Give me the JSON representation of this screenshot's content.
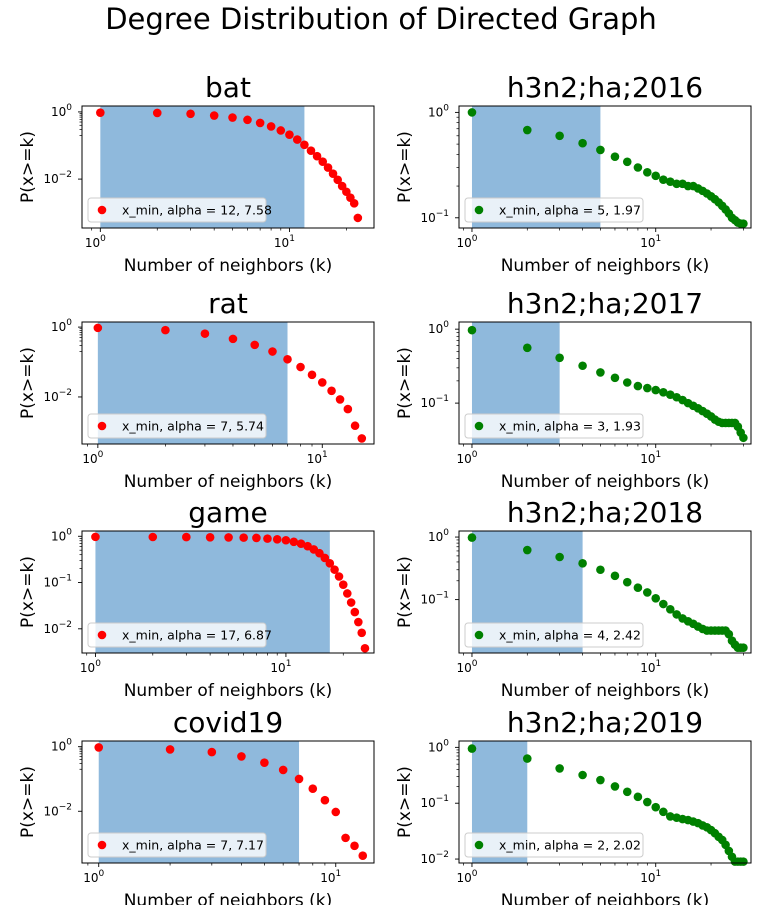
{
  "figure": {
    "title": "Degree Distribution of Directed Graph"
  },
  "chart_data": [
    {
      "type": "scatter",
      "title": "bat",
      "xlabel": "Number of neighbors (k)",
      "ylabel": "P(x>=k)",
      "xscale": "log",
      "yscale": "log",
      "xlim": [
        0.8,
        28
      ],
      "ylim": [
        0.00035,
        1.5
      ],
      "xticks": [
        {
          "v": 1,
          "base": "10",
          "exp": "0"
        },
        {
          "v": 10,
          "base": "10",
          "exp": "1"
        }
      ],
      "yticks": [
        {
          "v": 1,
          "base": "10",
          "exp": "0"
        },
        {
          "v": 0.01,
          "base": "10",
          "exp": "−2"
        }
      ],
      "color": "#ff0000",
      "shade": [
        1,
        12
      ],
      "legend": "x_min, alpha = 12, 7.58",
      "legend_position": "lower left",
      "x": [
        1,
        2,
        3,
        4,
        5,
        6,
        7,
        8,
        9,
        10,
        11,
        12,
        13,
        14,
        15,
        16,
        17,
        18,
        19,
        20,
        21,
        22,
        23
      ],
      "y": [
        0.95,
        0.93,
        0.88,
        0.78,
        0.68,
        0.58,
        0.47,
        0.37,
        0.28,
        0.21,
        0.15,
        0.105,
        0.07,
        0.048,
        0.033,
        0.022,
        0.0145,
        0.0095,
        0.0062,
        0.0042,
        0.0028,
        0.0019,
        0.0007
      ]
    },
    {
      "type": "scatter",
      "title": "h3n2;ha;2016",
      "xlabel": "Number of neighbors (k)",
      "ylabel": "P(x>=k)",
      "xscale": "log",
      "yscale": "log",
      "xlim": [
        0.85,
        33
      ],
      "ylim": [
        0.08,
        1.15
      ],
      "xticks": [
        {
          "v": 1,
          "base": "10",
          "exp": "0"
        },
        {
          "v": 10,
          "base": "10",
          "exp": "1"
        }
      ],
      "yticks": [
        {
          "v": 1,
          "base": "10",
          "exp": "0"
        },
        {
          "v": 0.1,
          "base": "10",
          "exp": "−1"
        }
      ],
      "color": "#008000",
      "shade": [
        1,
        5
      ],
      "legend": "x_min, alpha = 5, 1.97",
      "legend_position": "lower left",
      "x": [
        1,
        2,
        3,
        4,
        5,
        6,
        7,
        8,
        9,
        10,
        11,
        12,
        13,
        14,
        15,
        16,
        17,
        18,
        19,
        20,
        21,
        22,
        23,
        24,
        25,
        26,
        27,
        28,
        29,
        30
      ],
      "y": [
        1.0,
        0.68,
        0.6,
        0.51,
        0.44,
        0.38,
        0.34,
        0.3,
        0.27,
        0.25,
        0.23,
        0.22,
        0.21,
        0.21,
        0.2,
        0.2,
        0.19,
        0.18,
        0.17,
        0.16,
        0.15,
        0.14,
        0.13,
        0.12,
        0.11,
        0.1,
        0.095,
        0.09,
        0.088,
        0.088
      ]
    },
    {
      "type": "scatter",
      "title": "rat",
      "xlabel": "Number of neighbors (k)",
      "ylabel": "P(x>=k)",
      "xscale": "log",
      "yscale": "log",
      "xlim": [
        0.85,
        17
      ],
      "ylim": [
        0.00045,
        1.4
      ],
      "xticks": [
        {
          "v": 1,
          "base": "10",
          "exp": "0"
        },
        {
          "v": 10,
          "base": "10",
          "exp": "1"
        }
      ],
      "yticks": [
        {
          "v": 1,
          "base": "10",
          "exp": "0"
        },
        {
          "v": 0.01,
          "base": "10",
          "exp": "−2"
        }
      ],
      "color": "#ff0000",
      "shade": [
        1,
        7
      ],
      "legend": "x_min, alpha = 7, 5.74",
      "legend_position": "lower left",
      "x": [
        1,
        2,
        3,
        4,
        5,
        6,
        7,
        8,
        9,
        10,
        11,
        12,
        13,
        14,
        15
      ],
      "y": [
        0.95,
        0.82,
        0.65,
        0.46,
        0.31,
        0.2,
        0.12,
        0.072,
        0.043,
        0.026,
        0.015,
        0.0085,
        0.0045,
        0.0015,
        0.00065
      ]
    },
    {
      "type": "scatter",
      "title": "h3n2;ha;2017",
      "xlabel": "Number of neighbors (k)",
      "ylabel": "P(x>=k)",
      "xscale": "log",
      "yscale": "log",
      "xlim": [
        0.85,
        33
      ],
      "ylim": [
        0.028,
        1.25
      ],
      "xticks": [
        {
          "v": 1,
          "base": "10",
          "exp": "0"
        },
        {
          "v": 10,
          "base": "10",
          "exp": "1"
        }
      ],
      "yticks": [
        {
          "v": 1,
          "base": "10",
          "exp": "0"
        },
        {
          "v": 0.1,
          "base": "10",
          "exp": "−1"
        }
      ],
      "color": "#008000",
      "shade": [
        1,
        3
      ],
      "legend": "x_min, alpha = 3, 1.93",
      "legend_position": "lower left",
      "x": [
        1,
        2,
        3,
        4,
        5,
        6,
        7,
        8,
        9,
        10,
        11,
        12,
        13,
        14,
        15,
        16,
        17,
        18,
        19,
        20,
        21,
        22,
        23,
        24,
        25,
        26,
        27,
        28,
        29,
        30
      ],
      "y": [
        0.97,
        0.56,
        0.41,
        0.32,
        0.26,
        0.22,
        0.19,
        0.17,
        0.16,
        0.15,
        0.14,
        0.13,
        0.12,
        0.11,
        0.1,
        0.092,
        0.085,
        0.078,
        0.072,
        0.066,
        0.06,
        0.056,
        0.054,
        0.054,
        0.054,
        0.054,
        0.054,
        0.048,
        0.04,
        0.034
      ]
    },
    {
      "type": "scatter",
      "title": "game",
      "xlabel": "Number of neighbors (k)",
      "ylabel": "P(x>=k)",
      "xscale": "log",
      "yscale": "log",
      "xlim": [
        0.85,
        29
      ],
      "ylim": [
        0.003,
        1.3
      ],
      "xticks": [
        {
          "v": 1,
          "base": "10",
          "exp": "0"
        },
        {
          "v": 10,
          "base": "10",
          "exp": "1"
        }
      ],
      "yticks": [
        {
          "v": 1,
          "base": "10",
          "exp": "0"
        },
        {
          "v": 0.1,
          "base": "10",
          "exp": "−1"
        },
        {
          "v": 0.01,
          "base": "10",
          "exp": "−2"
        }
      ],
      "color": "#ff0000",
      "shade": [
        1,
        17
      ],
      "legend": "x_min, alpha = 17, 6.87",
      "legend_position": "lower left",
      "x": [
        1,
        2,
        3,
        4,
        5,
        6,
        7,
        8,
        9,
        10,
        11,
        12,
        13,
        14,
        15,
        16,
        17,
        18,
        19,
        20,
        21,
        22,
        23,
        24,
        25,
        26
      ],
      "y": [
        0.97,
        0.965,
        0.96,
        0.95,
        0.945,
        0.935,
        0.92,
        0.89,
        0.86,
        0.82,
        0.76,
        0.69,
        0.61,
        0.52,
        0.43,
        0.34,
        0.26,
        0.19,
        0.135,
        0.09,
        0.058,
        0.037,
        0.023,
        0.014,
        0.0082,
        0.0038
      ]
    },
    {
      "type": "scatter",
      "title": "h3n2;ha;2018",
      "xlabel": "Number of neighbors (k)",
      "ylabel": "P(x>=k)",
      "xscale": "log",
      "yscale": "log",
      "xlim": [
        0.85,
        33
      ],
      "ylim": [
        0.014,
        1.25
      ],
      "xticks": [
        {
          "v": 1,
          "base": "10",
          "exp": "0"
        },
        {
          "v": 10,
          "base": "10",
          "exp": "1"
        }
      ],
      "yticks": [
        {
          "v": 1,
          "base": "10",
          "exp": "0"
        },
        {
          "v": 0.1,
          "base": "10",
          "exp": "−1"
        }
      ],
      "color": "#008000",
      "shade": [
        1,
        4
      ],
      "legend": "x_min, alpha = 4, 2.42",
      "legend_position": "lower left",
      "x": [
        1,
        2,
        3,
        4,
        5,
        6,
        7,
        8,
        9,
        10,
        11,
        12,
        13,
        14,
        15,
        16,
        17,
        18,
        19,
        20,
        21,
        22,
        23,
        24,
        25,
        26,
        27,
        28,
        29,
        30
      ],
      "y": [
        0.98,
        0.62,
        0.48,
        0.38,
        0.3,
        0.24,
        0.19,
        0.155,
        0.13,
        0.105,
        0.085,
        0.07,
        0.058,
        0.05,
        0.045,
        0.041,
        0.037,
        0.034,
        0.032,
        0.032,
        0.032,
        0.032,
        0.032,
        0.032,
        0.028,
        0.022,
        0.019,
        0.017,
        0.017,
        0.017
      ]
    },
    {
      "type": "scatter",
      "title": "covid19",
      "xlabel": "Number of neighbors (k)",
      "ylabel": "P(x>=k)",
      "xscale": "log",
      "yscale": "log",
      "xlim": [
        0.85,
        14.5
      ],
      "ylim": [
        0.00025,
        1.5
      ],
      "xticks": [
        {
          "v": 1,
          "base": "10",
          "exp": "0"
        },
        {
          "v": 10,
          "base": "10",
          "exp": "1"
        }
      ],
      "yticks": [
        {
          "v": 1,
          "base": "10",
          "exp": "0"
        },
        {
          "v": 0.01,
          "base": "10",
          "exp": "−2"
        }
      ],
      "color": "#ff0000",
      "shade": [
        1,
        7
      ],
      "legend": "x_min, alpha = 7, 7.17",
      "legend_position": "lower left",
      "x": [
        1,
        2,
        3,
        4,
        5,
        6,
        7,
        8,
        9,
        10,
        11,
        12,
        13
      ],
      "y": [
        0.95,
        0.82,
        0.68,
        0.5,
        0.32,
        0.19,
        0.1,
        0.05,
        0.022,
        0.0095,
        0.0015,
        0.00085,
        0.00042
      ]
    },
    {
      "type": "scatter",
      "title": "h3n2;ha;2019",
      "xlabel": "Number of neighbors (k)",
      "ylabel": "P(x>=k)",
      "xscale": "log",
      "yscale": "log",
      "xlim": [
        0.85,
        33
      ],
      "ylim": [
        0.0085,
        1.3
      ],
      "xticks": [
        {
          "v": 1,
          "base": "10",
          "exp": "0"
        },
        {
          "v": 10,
          "base": "10",
          "exp": "1"
        }
      ],
      "yticks": [
        {
          "v": 1,
          "base": "10",
          "exp": "0"
        },
        {
          "v": 0.1,
          "base": "10",
          "exp": "−1"
        },
        {
          "v": 0.01,
          "base": "10",
          "exp": "−2"
        }
      ],
      "color": "#008000",
      "shade": [
        1,
        2
      ],
      "legend": "x_min, alpha = 2, 2.02",
      "legend_position": "lower left",
      "x": [
        1,
        2,
        3,
        4,
        5,
        6,
        7,
        8,
        9,
        10,
        11,
        12,
        13,
        14,
        15,
        16,
        17,
        18,
        19,
        20,
        21,
        22,
        23,
        24,
        25,
        26,
        27,
        28,
        29,
        30
      ],
      "y": [
        0.95,
        0.63,
        0.42,
        0.32,
        0.26,
        0.2,
        0.16,
        0.13,
        0.105,
        0.085,
        0.07,
        0.058,
        0.055,
        0.052,
        0.05,
        0.047,
        0.044,
        0.04,
        0.037,
        0.033,
        0.029,
        0.025,
        0.022,
        0.018,
        0.014,
        0.011,
        0.009,
        0.009,
        0.009,
        0.009
      ]
    }
  ]
}
